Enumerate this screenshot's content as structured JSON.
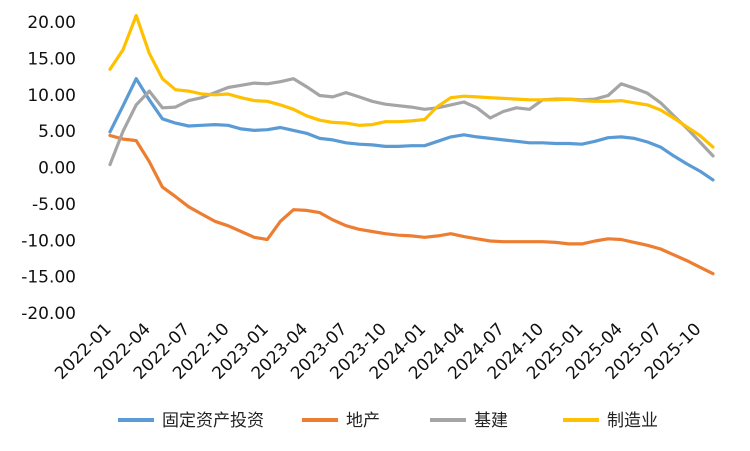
{
  "chart_data": {
    "type": "line",
    "title": "",
    "xlabel": "",
    "ylabel": "",
    "ylim": [
      -20,
      20
    ],
    "y_ticks": [
      "20.00",
      "15.00",
      "10.00",
      "5.00",
      "0.00",
      "-5.00",
      "-10.00",
      "-15.00",
      "-20.00"
    ],
    "x_tick_labels": [
      "2022-01",
      "2022-04",
      "2022-07",
      "2022-10",
      "2023-01",
      "2023-04",
      "2023-07",
      "2023-10",
      "2024-01",
      "2024-04",
      "2024-07",
      "2024-10",
      "2025-01",
      "2025-04",
      "2025-07",
      "2025-10"
    ],
    "x": [
      "2022-01",
      "2022-02",
      "2022-03",
      "2022-04",
      "2022-05",
      "2022-06",
      "2022-07",
      "2022-08",
      "2022-09",
      "2022-10",
      "2022-11",
      "2022-12",
      "2023-01",
      "2023-02",
      "2023-03",
      "2023-04",
      "2023-05",
      "2023-06",
      "2023-07",
      "2023-08",
      "2023-09",
      "2023-10",
      "2023-11",
      "2023-12",
      "2024-01",
      "2024-02",
      "2024-03",
      "2024-04",
      "2024-05",
      "2024-06",
      "2024-07",
      "2024-08",
      "2024-09",
      "2024-10",
      "2024-11",
      "2024-12",
      "2025-01",
      "2025-02",
      "2025-03",
      "2025-04",
      "2025-05",
      "2025-06",
      "2025-07",
      "2025-08",
      "2025-09",
      "2025-10",
      "2025-11"
    ],
    "grid": false,
    "legend_position": "bottom",
    "series": [
      {
        "name": "固定资产投资",
        "color": "#5B9BD5",
        "values": [
          4.9,
          8.5,
          12.2,
          9.3,
          6.7,
          6.1,
          5.7,
          5.8,
          5.9,
          5.8,
          5.3,
          5.1,
          5.2,
          5.5,
          5.1,
          4.7,
          4.0,
          3.8,
          3.4,
          3.2,
          3.1,
          2.9,
          2.9,
          3.0,
          3.0,
          3.6,
          4.2,
          4.5,
          4.2,
          4.0,
          3.8,
          3.6,
          3.4,
          3.4,
          3.3,
          3.3,
          3.2,
          3.6,
          4.1,
          4.2,
          4.0,
          3.5,
          2.8,
          1.6,
          0.5,
          -0.5,
          -1.7
        ]
      },
      {
        "name": "地产",
        "color": "#ED7D31",
        "values": [
          4.4,
          3.9,
          3.7,
          0.8,
          -2.7,
          -4.0,
          -5.4,
          -6.4,
          -7.4,
          -8.0,
          -8.8,
          -9.6,
          -9.9,
          -7.4,
          -5.8,
          -5.9,
          -6.2,
          -7.2,
          -8.0,
          -8.5,
          -8.8,
          -9.1,
          -9.3,
          -9.4,
          -9.6,
          -9.4,
          -9.1,
          -9.5,
          -9.8,
          -10.1,
          -10.2,
          -10.2,
          -10.2,
          -10.2,
          -10.3,
          -10.5,
          -10.5,
          -10.1,
          -9.8,
          -9.9,
          -10.3,
          -10.7,
          -11.2,
          -12.0,
          -12.8,
          -13.7,
          -14.6
        ]
      },
      {
        "name": "基建",
        "color": "#A5A5A5",
        "values": [
          0.4,
          5.0,
          8.6,
          10.5,
          8.2,
          8.3,
          9.2,
          9.6,
          10.3,
          11.0,
          11.3,
          11.6,
          11.5,
          11.8,
          12.2,
          11.1,
          9.9,
          9.7,
          10.3,
          9.7,
          9.1,
          8.7,
          8.5,
          8.3,
          8.0,
          8.2,
          8.6,
          9.0,
          8.2,
          6.8,
          7.7,
          8.2,
          8.0,
          9.3,
          9.4,
          9.4,
          9.3,
          9.4,
          9.9,
          11.5,
          10.9,
          10.2,
          8.9,
          7.1,
          5.4,
          3.5,
          1.6
        ]
      },
      {
        "name": "制造业",
        "color": "#FFC000",
        "values": [
          13.5,
          16.2,
          20.9,
          15.7,
          12.2,
          10.7,
          10.5,
          10.1,
          10.0,
          10.1,
          9.6,
          9.2,
          9.1,
          8.6,
          8.0,
          7.1,
          6.5,
          6.2,
          6.1,
          5.8,
          5.9,
          6.3,
          6.3,
          6.4,
          6.6,
          8.4,
          9.6,
          9.8,
          9.7,
          9.6,
          9.5,
          9.4,
          9.3,
          9.3,
          9.3,
          9.4,
          9.2,
          9.1,
          9.1,
          9.2,
          8.9,
          8.6,
          7.9,
          6.8,
          5.6,
          4.4,
          2.8
        ]
      }
    ]
  }
}
